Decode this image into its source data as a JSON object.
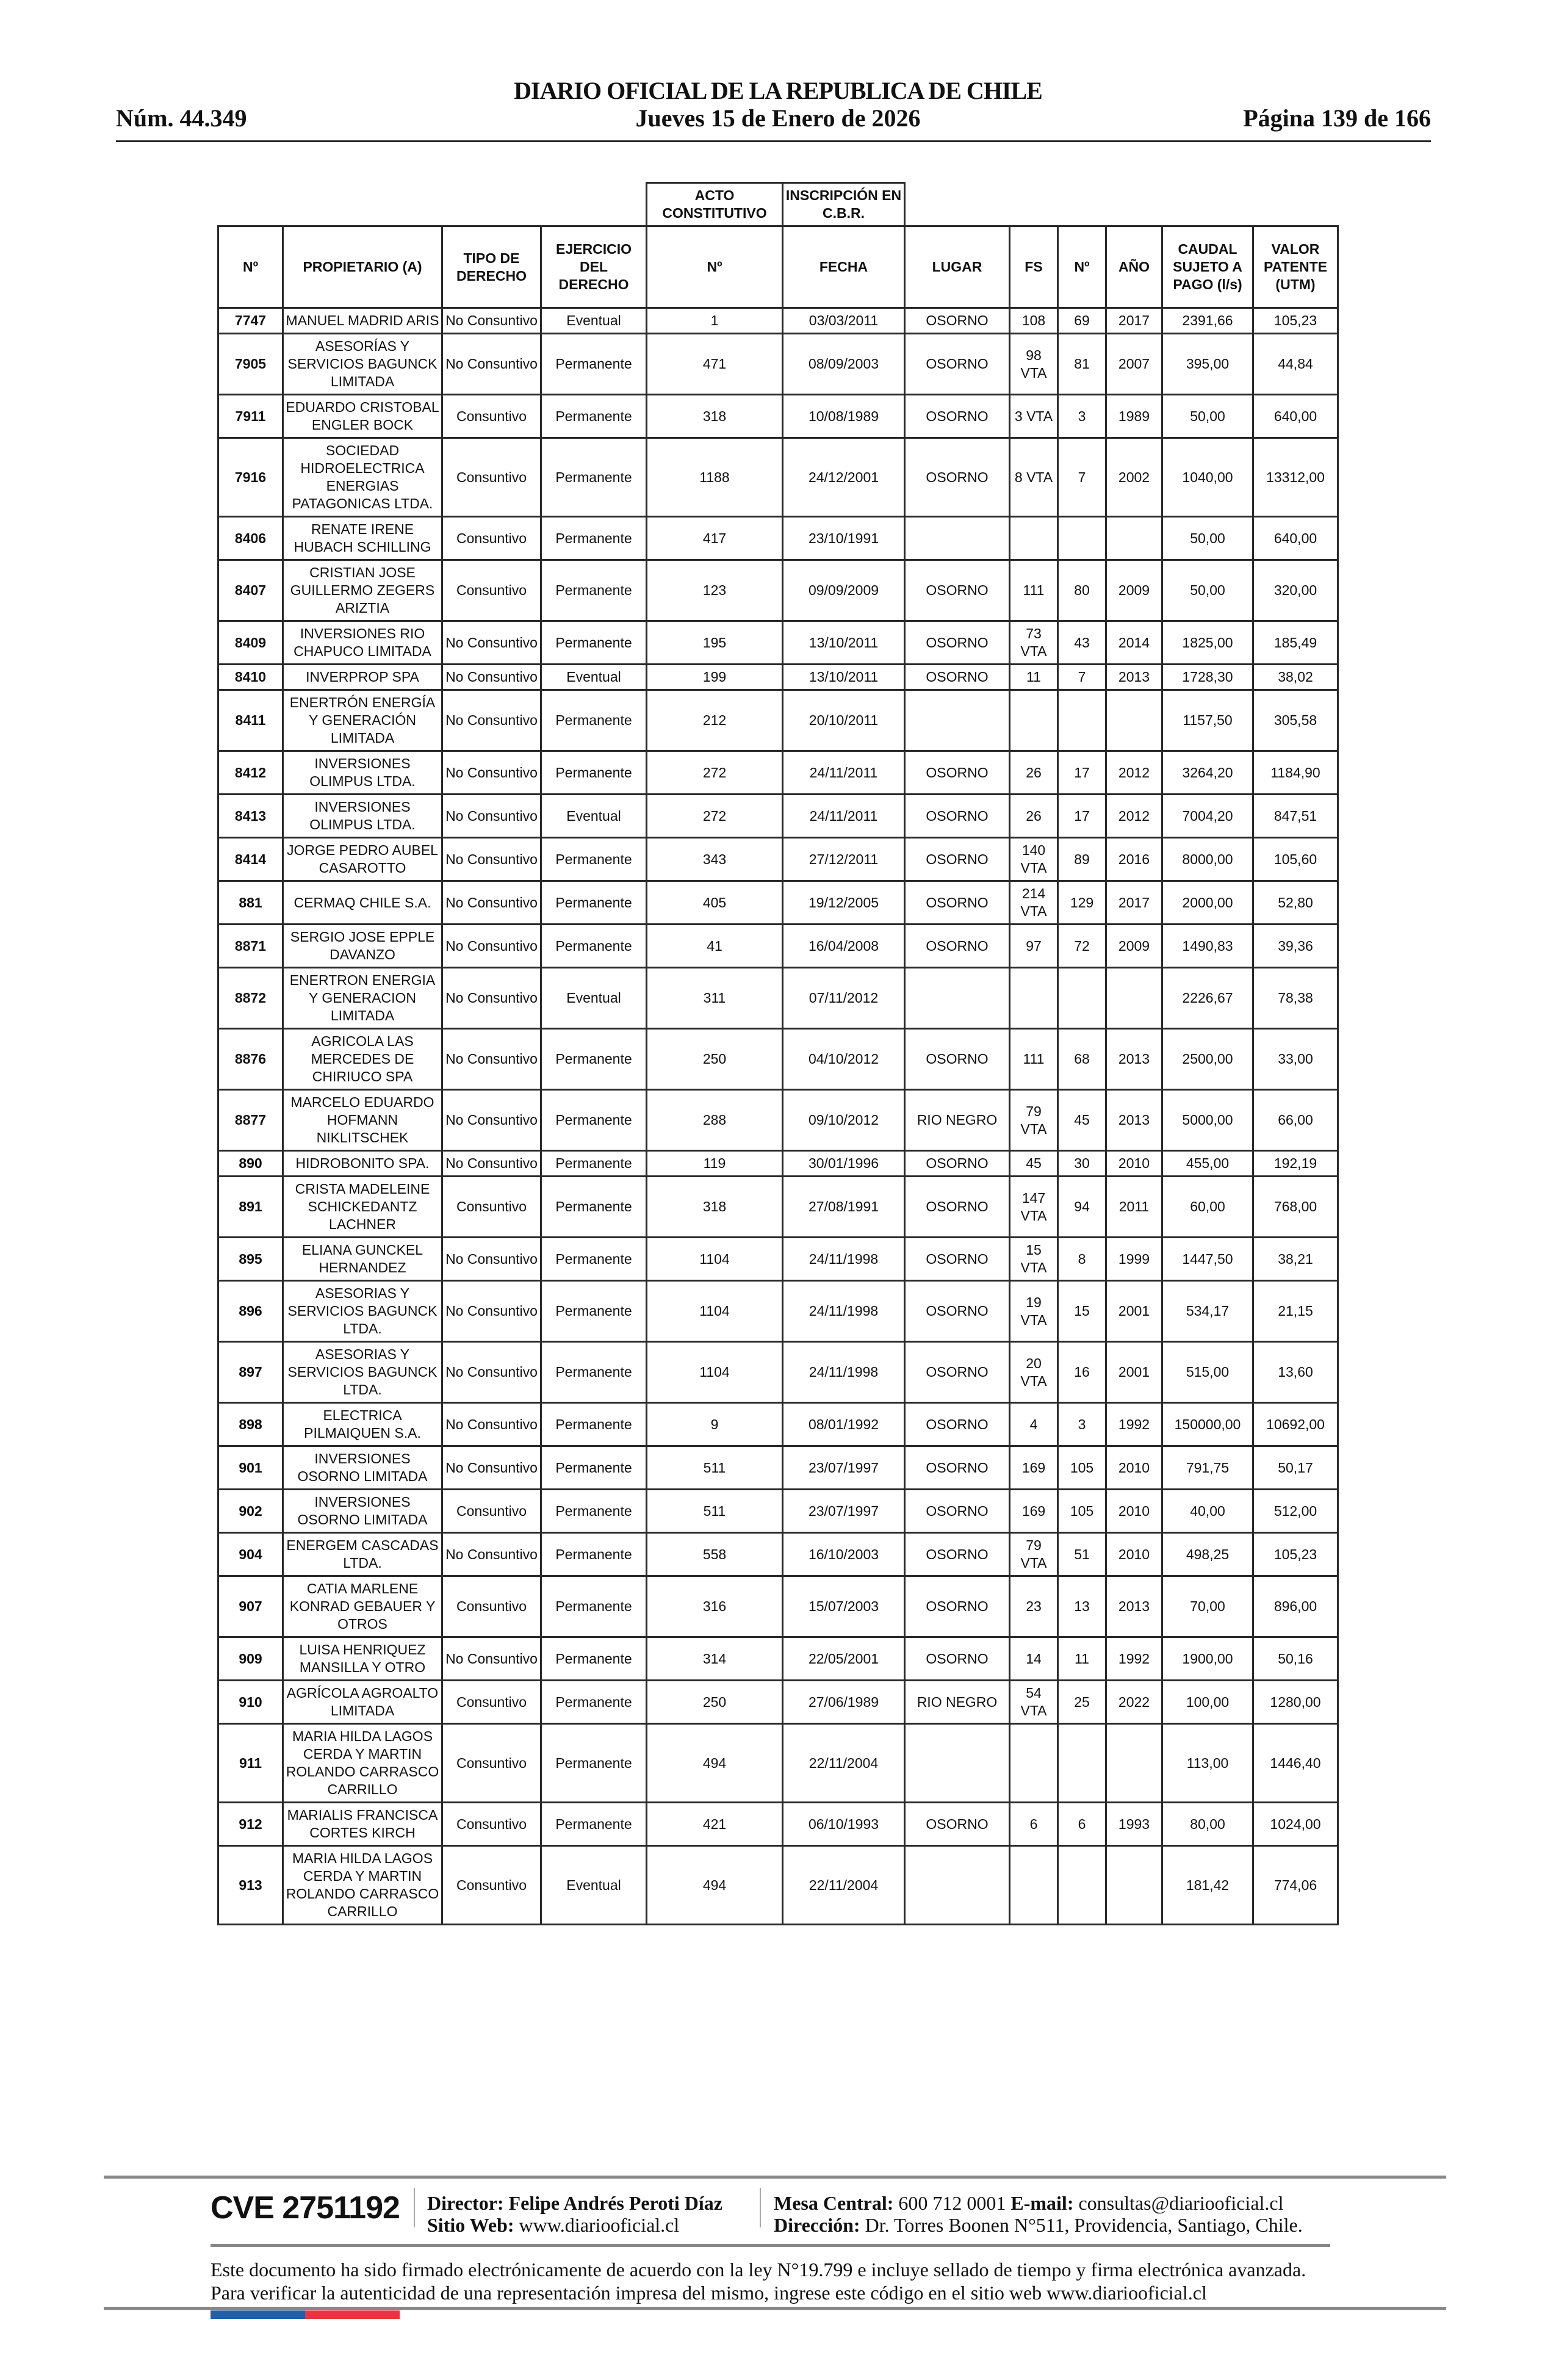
{
  "header": {
    "title": "DIARIO OFICIAL DE LA REPUBLICA DE CHILE",
    "date": "Jueves 15 de Enero de 2026",
    "number": "Núm. 44.349",
    "page": "Página 139 de 166"
  },
  "table": {
    "group_headers": {
      "acto": "ACTO CONSTITUTIVO",
      "inscripcion": "INSCRIPCIÓN EN C.B.R."
    },
    "columns": [
      "Nº",
      "PROPIETARIO (A)",
      "TIPO DE DERECHO",
      "EJERCICIO DEL DERECHO",
      "Nº",
      "FECHA",
      "LUGAR",
      "FS",
      "Nº",
      "AÑO",
      "CAUDAL SUJETO A PAGO (l/s)",
      "VALOR PATENTE (UTM)"
    ],
    "rows": [
      [
        "7747",
        "MANUEL MADRID ARIS",
        "No Consuntivo",
        "Eventual",
        "1",
        "03/03/2011",
        "OSORNO",
        "108",
        "69",
        "2017",
        "2391,66",
        "105,23"
      ],
      [
        "7905",
        "ASESORÍAS Y SERVICIOS BAGUNCK LIMITADA",
        "No Consuntivo",
        "Permanente",
        "471",
        "08/09/2003",
        "OSORNO",
        "98 VTA",
        "81",
        "2007",
        "395,00",
        "44,84"
      ],
      [
        "7911",
        "EDUARDO CRISTOBAL ENGLER BOCK",
        "Consuntivo",
        "Permanente",
        "318",
        "10/08/1989",
        "OSORNO",
        "3 VTA",
        "3",
        "1989",
        "50,00",
        "640,00"
      ],
      [
        "7916",
        "SOCIEDAD HIDROELECTRICA ENERGIAS PATAGONICAS LTDA.",
        "Consuntivo",
        "Permanente",
        "1188",
        "24/12/2001",
        "OSORNO",
        "8 VTA",
        "7",
        "2002",
        "1040,00",
        "13312,00"
      ],
      [
        "8406",
        "RENATE IRENE HUBACH SCHILLING",
        "Consuntivo",
        "Permanente",
        "417",
        "23/10/1991",
        "",
        "",
        "",
        "",
        "50,00",
        "640,00"
      ],
      [
        "8407",
        "CRISTIAN JOSE GUILLERMO ZEGERS ARIZTIA",
        "Consuntivo",
        "Permanente",
        "123",
        "09/09/2009",
        "OSORNO",
        "111",
        "80",
        "2009",
        "50,00",
        "320,00"
      ],
      [
        "8409",
        "INVERSIONES RIO CHAPUCO LIMITADA",
        "No Consuntivo",
        "Permanente",
        "195",
        "13/10/2011",
        "OSORNO",
        "73 VTA",
        "43",
        "2014",
        "1825,00",
        "185,49"
      ],
      [
        "8410",
        "INVERPROP SPA",
        "No Consuntivo",
        "Eventual",
        "199",
        "13/10/2011",
        "OSORNO",
        "11",
        "7",
        "2013",
        "1728,30",
        "38,02"
      ],
      [
        "8411",
        "ENERTRÓN ENERGÍA Y GENERACIÓN LIMITADA",
        "No Consuntivo",
        "Permanente",
        "212",
        "20/10/2011",
        "",
        "",
        "",
        "",
        "1157,50",
        "305,58"
      ],
      [
        "8412",
        "INVERSIONES OLIMPUS LTDA.",
        "No Consuntivo",
        "Permanente",
        "272",
        "24/11/2011",
        "OSORNO",
        "26",
        "17",
        "2012",
        "3264,20",
        "1184,90"
      ],
      [
        "8413",
        "INVERSIONES OLIMPUS LTDA.",
        "No Consuntivo",
        "Eventual",
        "272",
        "24/11/2011",
        "OSORNO",
        "26",
        "17",
        "2012",
        "7004,20",
        "847,51"
      ],
      [
        "8414",
        "JORGE PEDRO AUBEL CASAROTTO",
        "No Consuntivo",
        "Permanente",
        "343",
        "27/12/2011",
        "OSORNO",
        "140 VTA",
        "89",
        "2016",
        "8000,00",
        "105,60"
      ],
      [
        "881",
        "CERMAQ CHILE S.A.",
        "No Consuntivo",
        "Permanente",
        "405",
        "19/12/2005",
        "OSORNO",
        "214 VTA",
        "129",
        "2017",
        "2000,00",
        "52,80"
      ],
      [
        "8871",
        "SERGIO JOSE EPPLE DAVANZO",
        "No Consuntivo",
        "Permanente",
        "41",
        "16/04/2008",
        "OSORNO",
        "97",
        "72",
        "2009",
        "1490,83",
        "39,36"
      ],
      [
        "8872",
        "ENERTRON ENERGIA Y GENERACION LIMITADA",
        "No Consuntivo",
        "Eventual",
        "311",
        "07/11/2012",
        "",
        "",
        "",
        "",
        "2226,67",
        "78,38"
      ],
      [
        "8876",
        "AGRICOLA LAS MERCEDES DE CHIRIUCO SPA",
        "No Consuntivo",
        "Permanente",
        "250",
        "04/10/2012",
        "OSORNO",
        "111",
        "68",
        "2013",
        "2500,00",
        "33,00"
      ],
      [
        "8877",
        "MARCELO EDUARDO HOFMANN NIKLITSCHEK",
        "No Consuntivo",
        "Permanente",
        "288",
        "09/10/2012",
        "RIO NEGRO",
        "79 VTA",
        "45",
        "2013",
        "5000,00",
        "66,00"
      ],
      [
        "890",
        "HIDROBONITO SPA.",
        "No Consuntivo",
        "Permanente",
        "119",
        "30/01/1996",
        "OSORNO",
        "45",
        "30",
        "2010",
        "455,00",
        "192,19"
      ],
      [
        "891",
        "CRISTA MADELEINE SCHICKEDANTZ LACHNER",
        "Consuntivo",
        "Permanente",
        "318",
        "27/08/1991",
        "OSORNO",
        "147 VTA",
        "94",
        "2011",
        "60,00",
        "768,00"
      ],
      [
        "895",
        "ELIANA GUNCKEL HERNANDEZ",
        "No Consuntivo",
        "Permanente",
        "1104",
        "24/11/1998",
        "OSORNO",
        "15 VTA",
        "8",
        "1999",
        "1447,50",
        "38,21"
      ],
      [
        "896",
        "ASESORIAS Y SERVICIOS BAGUNCK LTDA.",
        "No Consuntivo",
        "Permanente",
        "1104",
        "24/11/1998",
        "OSORNO",
        "19 VTA",
        "15",
        "2001",
        "534,17",
        "21,15"
      ],
      [
        "897",
        "ASESORIAS Y SERVICIOS BAGUNCK LTDA.",
        "No Consuntivo",
        "Permanente",
        "1104",
        "24/11/1998",
        "OSORNO",
        "20 VTA",
        "16",
        "2001",
        "515,00",
        "13,60"
      ],
      [
        "898",
        "ELECTRICA PILMAIQUEN S.A.",
        "No Consuntivo",
        "Permanente",
        "9",
        "08/01/1992",
        "OSORNO",
        "4",
        "3",
        "1992",
        "150000,00",
        "10692,00"
      ],
      [
        "901",
        "INVERSIONES OSORNO LIMITADA",
        "No Consuntivo",
        "Permanente",
        "511",
        "23/07/1997",
        "OSORNO",
        "169",
        "105",
        "2010",
        "791,75",
        "50,17"
      ],
      [
        "902",
        "INVERSIONES OSORNO LIMITADA",
        "Consuntivo",
        "Permanente",
        "511",
        "23/07/1997",
        "OSORNO",
        "169",
        "105",
        "2010",
        "40,00",
        "512,00"
      ],
      [
        "904",
        "ENERGEM CASCADAS LTDA.",
        "No Consuntivo",
        "Permanente",
        "558",
        "16/10/2003",
        "OSORNO",
        "79 VTA",
        "51",
        "2010",
        "498,25",
        "105,23"
      ],
      [
        "907",
        "CATIA MARLENE KONRAD GEBAUER Y OTROS",
        "Consuntivo",
        "Permanente",
        "316",
        "15/07/2003",
        "OSORNO",
        "23",
        "13",
        "2013",
        "70,00",
        "896,00"
      ],
      [
        "909",
        "LUISA HENRIQUEZ MANSILLA Y OTRO",
        "No Consuntivo",
        "Permanente",
        "314",
        "22/05/2001",
        "OSORNO",
        "14",
        "11",
        "1992",
        "1900,00",
        "50,16"
      ],
      [
        "910",
        "AGRÍCOLA AGROALTO LIMITADA",
        "Consuntivo",
        "Permanente",
        "250",
        "27/06/1989",
        "RIO NEGRO",
        "54 VTA",
        "25",
        "2022",
        "100,00",
        "1280,00"
      ],
      [
        "911",
        "MARIA HILDA LAGOS CERDA Y MARTIN ROLANDO CARRASCO CARRILLO",
        "Consuntivo",
        "Permanente",
        "494",
        "22/11/2004",
        "",
        "",
        "",
        "",
        "113,00",
        "1446,40"
      ],
      [
        "912",
        "MARIALIS FRANCISCA CORTES KIRCH",
        "Consuntivo",
        "Permanente",
        "421",
        "06/10/1993",
        "OSORNO",
        "6",
        "6",
        "1993",
        "80,00",
        "1024,00"
      ],
      [
        "913",
        "MARIA HILDA LAGOS CERDA Y MARTIN ROLANDO CARRASCO CARRILLO",
        "Consuntivo",
        "Eventual",
        "494",
        "22/11/2004",
        "",
        "",
        "",
        "",
        "181,42",
        "774,06"
      ]
    ]
  },
  "footer": {
    "cve": "CVE 2751192",
    "director_label": "Director:",
    "director": "Felipe Andrés Peroti Díaz",
    "web_label": "Sitio Web:",
    "web": "www.diariooficial.cl",
    "mesa_label": "Mesa Central:",
    "mesa": "600 712 0001",
    "email_label": "E-mail:",
    "email": "consultas@diariooficial.cl",
    "direccion_label": "Dirección:",
    "direccion": "Dr. Torres Boonen N°511, Providencia, Santiago, Chile.",
    "disclaimer": "Este documento ha sido firmado electrónicamente de acuerdo con la ley N°19.799 e incluye sellado de tiempo y firma electrónica avanzada. Para verificar la autenticidad de una representación impresa del mismo, ingrese este código en el sitio web www.diariooficial.cl",
    "flag_colors": [
      "#1f5fab",
      "#e8353f"
    ]
  }
}
